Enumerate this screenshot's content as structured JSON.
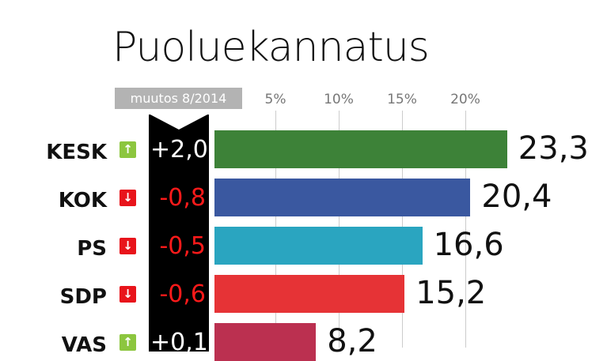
{
  "chart_data": {
    "type": "bar",
    "orientation": "horizontal",
    "title": "Puoluekannatus",
    "change_header": "muutos 8/2014",
    "x_ticks": [
      "5%",
      "10%",
      "15%",
      "20%"
    ],
    "x_tick_values": [
      5,
      10,
      15,
      20
    ],
    "grid": true,
    "categories": [
      "KESK",
      "KOK",
      "PS",
      "SDP",
      "VAS"
    ],
    "values": [
      23.3,
      20.4,
      16.6,
      15.2,
      8.2
    ],
    "value_labels": [
      "23,3",
      "20,4",
      "16,6",
      "15,2",
      "8,2"
    ],
    "changes": [
      "+2,0",
      "-0,8",
      "-0,5",
      "-0,6",
      "+0,1"
    ],
    "directions": [
      "up",
      "down",
      "down",
      "down",
      "up"
    ],
    "colors": [
      "#3d8238",
      "#3a58a0",
      "#2aa5c0",
      "#e63336",
      "#bb3050"
    ],
    "indicator_colors": {
      "up": "#8cc63f",
      "down": "#e8141b"
    },
    "change_text_colors": {
      "up": "#ffffff",
      "down": "#ff1a1a"
    }
  }
}
